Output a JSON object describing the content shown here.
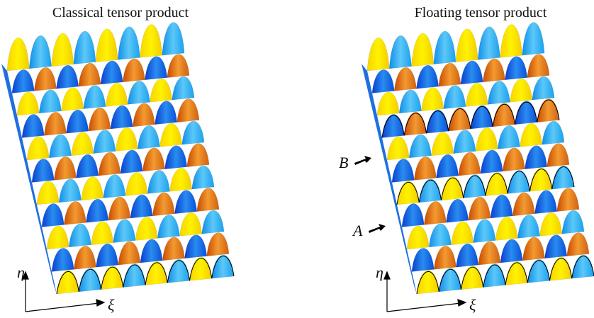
{
  "panels": [
    {
      "title": "Classical tensor product",
      "axis_x": "ξ",
      "axis_y": "η"
    },
    {
      "title": "Floating tensor product",
      "axis_x": "ξ",
      "axis_y": "η",
      "labels": [
        "B",
        "A"
      ]
    }
  ]
}
